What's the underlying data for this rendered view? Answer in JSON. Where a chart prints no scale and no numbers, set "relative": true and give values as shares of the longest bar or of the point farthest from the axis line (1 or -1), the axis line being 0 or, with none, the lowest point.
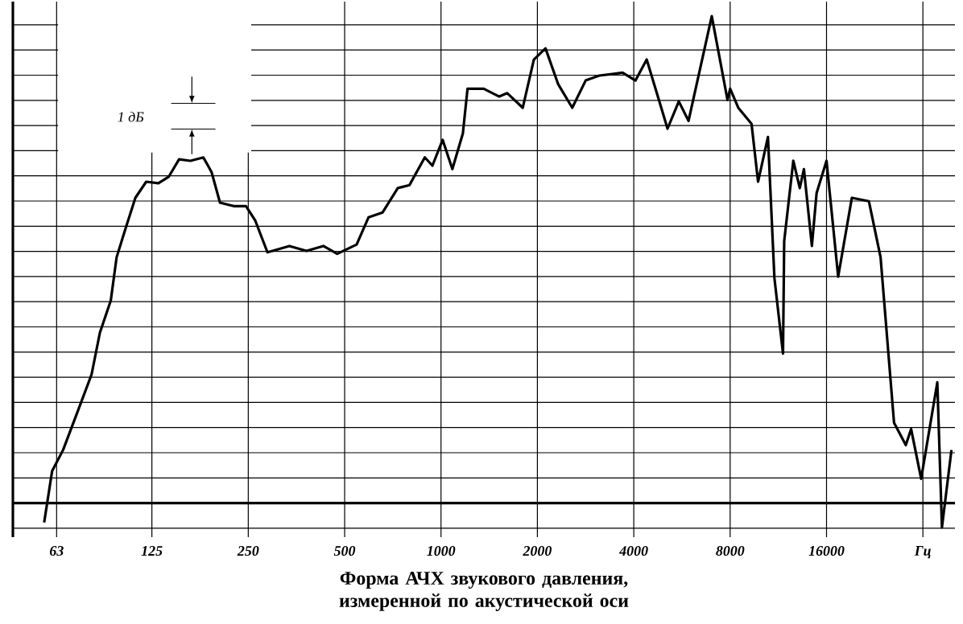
{
  "chart_data": {
    "type": "line",
    "title": "Форма АЧХ звукового давления, измеренной по акустической оси",
    "relative": true,
    "log": "x",
    "grid": true,
    "marker": "none",
    "line_style": "solid",
    "xlim": [
      46,
      40300
    ],
    "xticks": [
      63,
      125,
      250,
      500,
      1000,
      2000,
      4000,
      8000,
      16000,
      {
        "value": 32000,
        "label": "Гц"
      }
    ],
    "annotations": [
      "1 дБ"
    ],
    "x": [
      57.6,
      61,
      66,
      73,
      81,
      86,
      93,
      97,
      103,
      111,
      120,
      131,
      141,
      152,
      165,
      181,
      192,
      204,
      225,
      246,
      263,
      287,
      336,
      380,
      429,
      474,
      545,
      594,
      657,
      733,
      797,
      890,
      940,
      1012,
      1085,
      1170,
      1210,
      1360,
      1520,
      1610,
      1800,
      1950,
      2120,
      2320,
      2570,
      2830,
      3120,
      3690,
      4050,
      4390,
      5100,
      5530,
      5930,
      7010,
      7850,
      8000,
      8480,
      9330,
      9780,
      10500,
      11000,
      11700,
      11800,
      12600,
      13200,
      13600,
      14400,
      14900,
      16000,
      17400,
      19200,
      21700,
      23600,
      26000,
      28300,
      29400,
      31600,
      35500,
      36700,
      39300
    ],
    "values": [
      -0.04,
      0.066,
      0.109,
      0.185,
      0.264,
      0.35,
      0.416,
      0.505,
      0.56,
      0.627,
      0.66,
      0.657,
      0.67,
      0.706,
      0.703,
      0.71,
      0.68,
      0.617,
      0.61,
      0.61,
      0.58,
      0.515,
      0.528,
      0.518,
      0.528,
      0.512,
      0.531,
      0.587,
      0.597,
      0.647,
      0.653,
      0.71,
      0.693,
      0.746,
      0.686,
      0.759,
      0.851,
      0.851,
      0.835,
      0.842,
      0.812,
      0.911,
      0.934,
      0.861,
      0.812,
      0.868,
      0.878,
      0.884,
      0.868,
      0.911,
      0.769,
      0.825,
      0.785,
      1.0,
      0.828,
      0.851,
      0.812,
      0.779,
      0.66,
      0.752,
      0.462,
      0.307,
      0.538,
      0.703,
      0.647,
      0.686,
      0.528,
      0.637,
      0.703,
      0.465,
      0.627,
      0.62,
      0.505,
      0.165,
      0.119,
      0.152,
      0.05,
      0.248,
      -0.05,
      0.109
    ],
    "color": "#000000"
  }
}
